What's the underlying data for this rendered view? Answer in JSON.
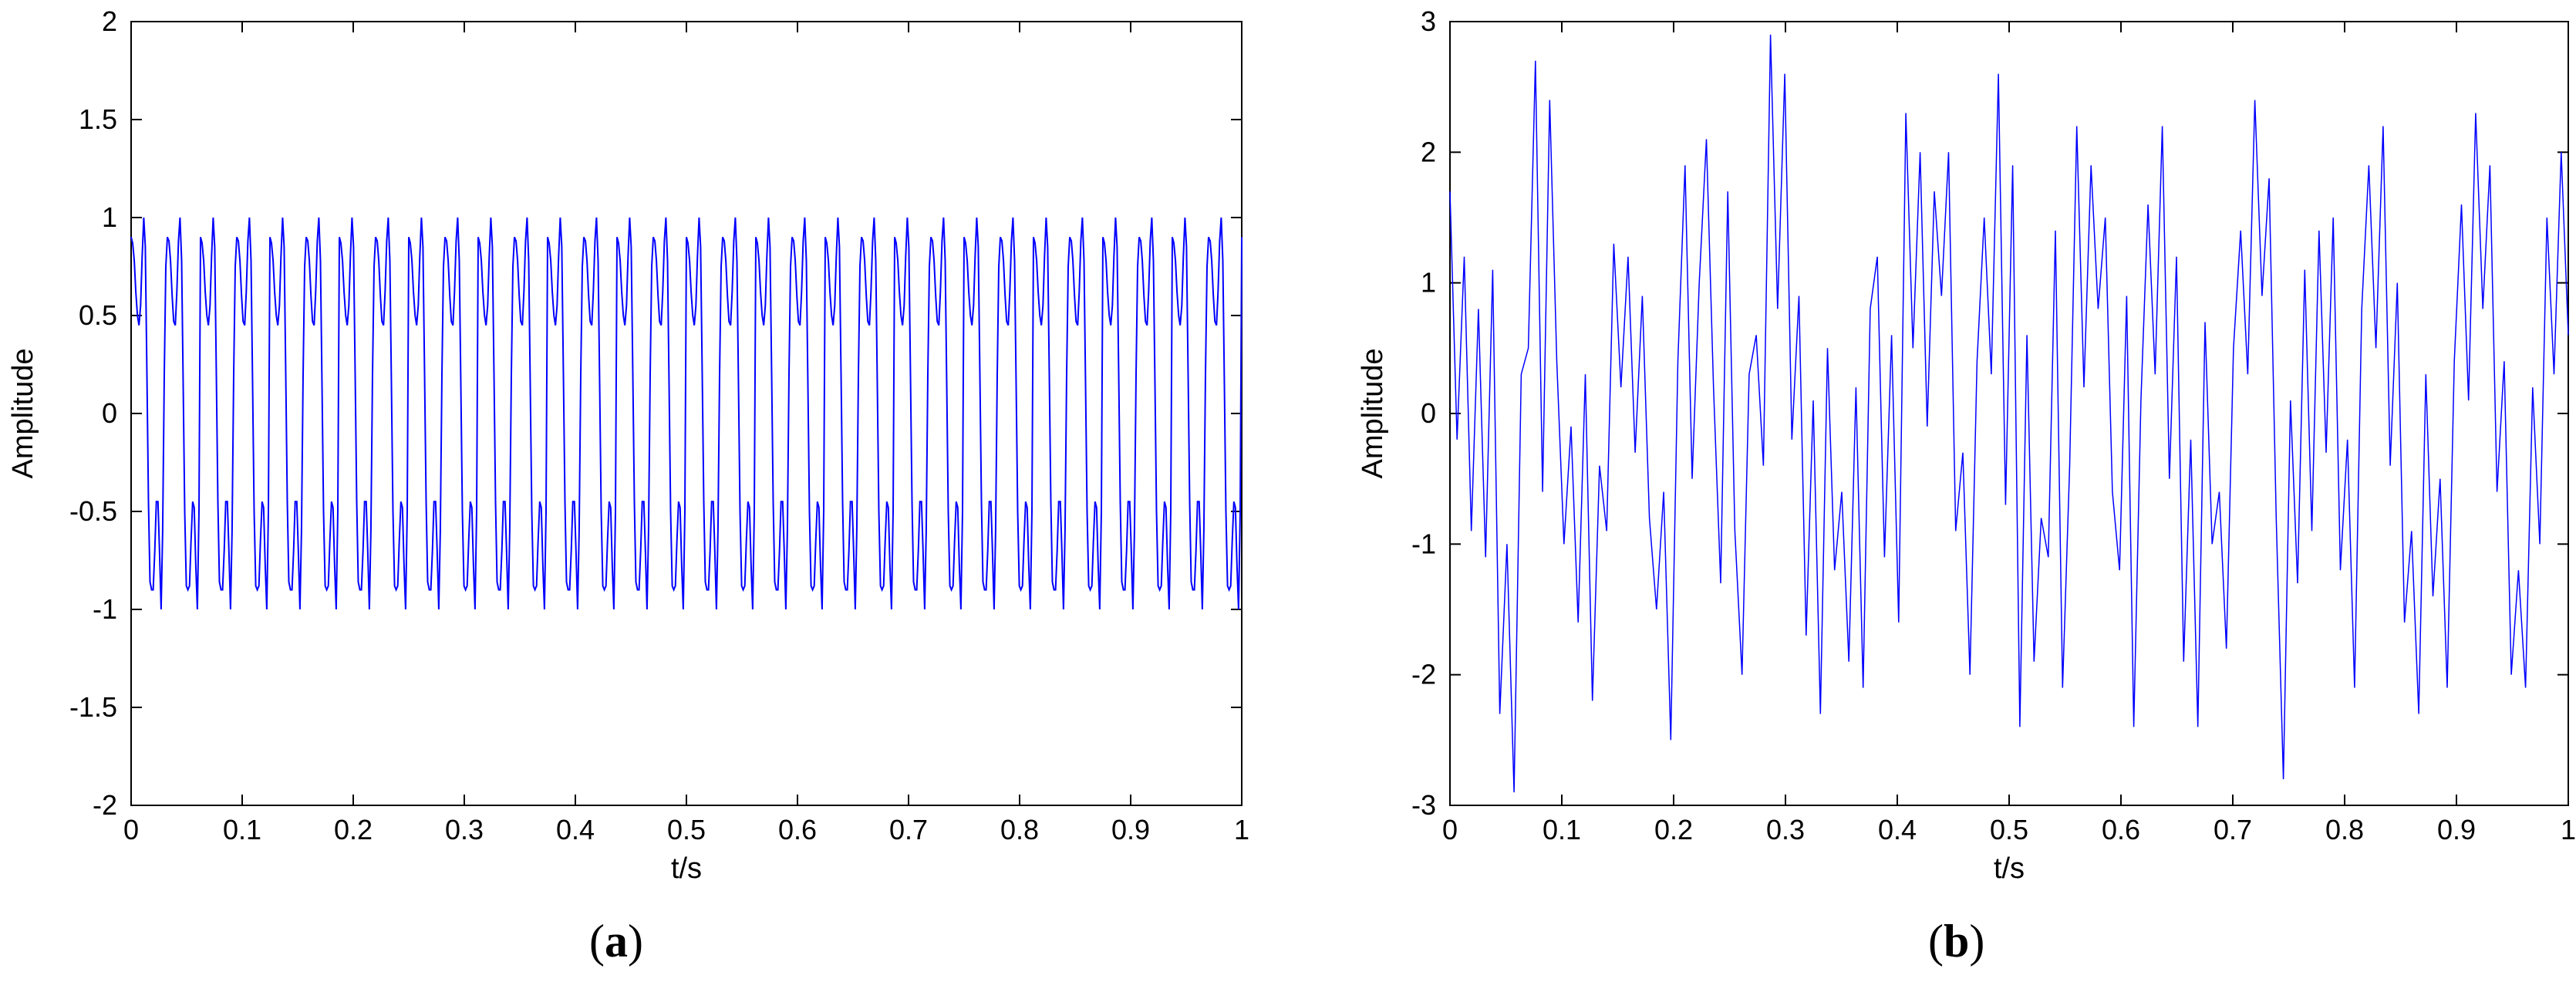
{
  "chart_data": [
    {
      "panel": "a",
      "caption_open": "(",
      "caption_letter": "a",
      "caption_close": ")",
      "type": "line",
      "xlabel": "t/s",
      "ylabel": "Amplitude",
      "xlim": [
        0,
        1
      ],
      "ylim": [
        -2,
        2
      ],
      "xticks": [
        "0",
        "0.1",
        "0.2",
        "0.3",
        "0.4",
        "0.5",
        "0.6",
        "0.7",
        "0.8",
        "0.9",
        "1"
      ],
      "yticks": [
        "-2",
        "-1.5",
        "-1",
        "-0.5",
        "0",
        "0.5",
        "1",
        "1.5",
        "2"
      ],
      "grid": false,
      "line_color": "#0000ff",
      "signal": "periodic square-like wave, period about 0.0625 s (16 Hz), amplitude about 1 with dips to about 0.45",
      "series": [
        {
          "values": [
            0.9,
            0.87,
            0.78,
            0.62,
            0.5,
            0.45,
            0.55,
            0.8,
            1.0,
            0.85,
            0.2,
            -0.45,
            -0.86,
            -0.9,
            -0.9,
            -0.7,
            -0.45,
            -0.45,
            -0.7,
            -1.0,
            -0.6,
            0.2,
            0.75,
            0.9,
            0.88,
            0.78,
            0.6,
            0.47,
            0.45,
            0.62,
            0.88,
            1.0,
            0.78,
            0.15,
            -0.5,
            -0.88,
            -0.9,
            -0.88,
            -0.65,
            -0.45,
            -0.48,
            -0.78,
            -1.0,
            -0.5
          ]
        }
      ]
    },
    {
      "panel": "b",
      "caption_open": "(",
      "caption_letter": "b",
      "caption_close": ")",
      "type": "line",
      "xlabel": "t/s",
      "ylabel": "Amplitude",
      "xlim": [
        0,
        1
      ],
      "ylim": [
        -3,
        3
      ],
      "xticks": [
        "0",
        "0.1",
        "0.2",
        "0.3",
        "0.4",
        "0.5",
        "0.6",
        "0.7",
        "0.8",
        "0.9",
        "1"
      ],
      "yticks": [
        "-3",
        "-2",
        "-1",
        "0",
        "1",
        "2",
        "3"
      ],
      "grid": false,
      "line_color": "#0000ff",
      "signal": "noisy version of the periodic signal, values roughly between -2.9 and 2.9",
      "series": [
        {
          "values": [
            1.7,
            -0.2,
            1.2,
            -0.9,
            0.8,
            -1.1,
            1.1,
            -2.3,
            -1.0,
            -2.9,
            0.3,
            0.5,
            2.7,
            -0.6,
            2.4,
            0.4,
            -1.0,
            -0.1,
            -1.6,
            0.3,
            -2.2,
            -0.4,
            -0.9,
            1.3,
            0.2,
            1.2,
            -0.3,
            0.9,
            -0.8,
            -1.5,
            -0.6,
            -2.5,
            0.4,
            1.9,
            -0.5,
            1.0,
            2.1,
            0.2,
            -1.3,
            1.7,
            -0.9,
            -2.0,
            0.3,
            0.6,
            -0.4,
            2.9,
            0.8,
            2.6,
            -0.2,
            0.9,
            -1.7,
            0.1,
            -2.3,
            0.5,
            -1.2,
            -0.6,
            -1.9,
            0.2,
            -2.1,
            0.8,
            1.2,
            -1.1,
            0.6,
            -1.6,
            2.3,
            0.5,
            2.0,
            -0.1,
            1.7,
            0.9,
            2.0,
            -0.9,
            -0.3,
            -2.0,
            0.4,
            1.5,
            0.3,
            2.6,
            -0.7,
            1.9,
            -2.4,
            0.6,
            -1.9,
            -0.8,
            -1.1,
            1.4,
            -2.1,
            -0.4,
            2.2,
            0.2,
            1.9,
            0.8,
            1.5,
            -0.6,
            -1.2,
            0.9,
            -2.4,
            0.1,
            1.6,
            0.3,
            2.2,
            -0.5,
            1.2,
            -1.9,
            -0.2,
            -2.4,
            0.7,
            -1.0,
            -0.6,
            -1.8,
            0.5,
            1.4,
            0.3,
            2.4,
            0.9,
            1.8,
            -0.8,
            -2.8,
            0.1,
            -1.3,
            1.1,
            -0.9,
            1.4,
            -0.3,
            1.5,
            -1.2,
            -0.2,
            -2.1,
            0.8,
            1.9,
            0.5,
            2.2,
            -0.4,
            1.0,
            -1.6,
            -0.9,
            -2.3,
            0.3,
            -1.4,
            -0.5,
            -2.1,
            0.4,
            1.6,
            0.1,
            2.3,
            0.8,
            1.9,
            -0.6,
            0.4,
            -2.0,
            -1.2,
            -2.1,
            0.2,
            -1.0,
            1.5,
            0.3,
            2.0,
            0.6
          ]
        }
      ]
    }
  ]
}
